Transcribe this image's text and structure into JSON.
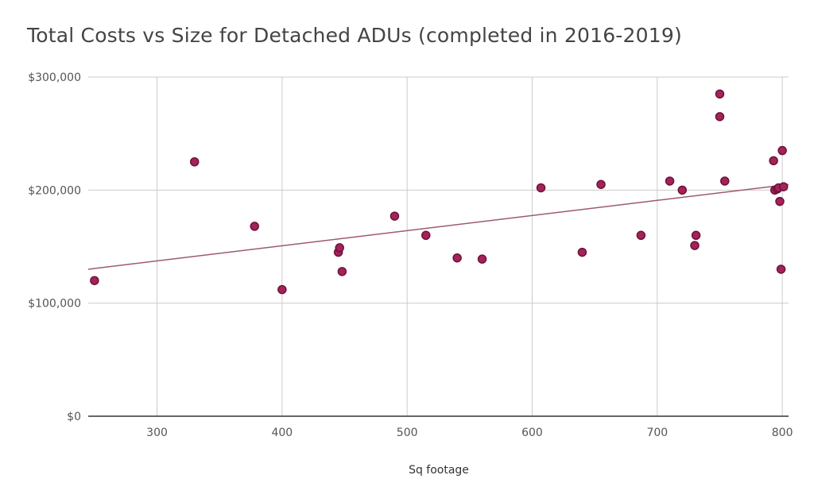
{
  "chart_data": {
    "type": "scatter",
    "title": "Total Costs vs Size for Detached ADUs (completed in 2016-2019)",
    "xlabel": "Sq footage",
    "ylabel": "",
    "xlim": [
      245,
      805
    ],
    "ylim": [
      0,
      300000
    ],
    "x_ticks": [
      {
        "value": 300,
        "label": "300"
      },
      {
        "value": 400,
        "label": "400"
      },
      {
        "value": 500,
        "label": "500"
      },
      {
        "value": 600,
        "label": "600"
      },
      {
        "value": 700,
        "label": "700"
      },
      {
        "value": 800,
        "label": "800"
      }
    ],
    "y_ticks": [
      {
        "value": 0,
        "label": "$0"
      },
      {
        "value": 100000,
        "label": "$100,000"
      },
      {
        "value": 200000,
        "label": "$200,000"
      },
      {
        "value": 300000,
        "label": "$300,000"
      }
    ],
    "grid": true,
    "points": [
      {
        "x": 250,
        "y": 120000
      },
      {
        "x": 330,
        "y": 225000
      },
      {
        "x": 378,
        "y": 168000
      },
      {
        "x": 400,
        "y": 112000
      },
      {
        "x": 445,
        "y": 145000
      },
      {
        "x": 446,
        "y": 149000
      },
      {
        "x": 448,
        "y": 128000
      },
      {
        "x": 490,
        "y": 177000
      },
      {
        "x": 515,
        "y": 160000
      },
      {
        "x": 540,
        "y": 140000
      },
      {
        "x": 560,
        "y": 139000
      },
      {
        "x": 607,
        "y": 202000
      },
      {
        "x": 640,
        "y": 145000
      },
      {
        "x": 655,
        "y": 205000
      },
      {
        "x": 687,
        "y": 160000
      },
      {
        "x": 710,
        "y": 208000
      },
      {
        "x": 720,
        "y": 200000
      },
      {
        "x": 730,
        "y": 151000
      },
      {
        "x": 731,
        "y": 160000
      },
      {
        "x": 750,
        "y": 285000
      },
      {
        "x": 750,
        "y": 265000
      },
      {
        "x": 754,
        "y": 208000
      },
      {
        "x": 793,
        "y": 226000
      },
      {
        "x": 794,
        "y": 200000
      },
      {
        "x": 796,
        "y": 201000
      },
      {
        "x": 797,
        "y": 202000
      },
      {
        "x": 798,
        "y": 190000
      },
      {
        "x": 799,
        "y": 130000
      },
      {
        "x": 800,
        "y": 235000
      },
      {
        "x": 801,
        "y": 203000
      }
    ],
    "trendline": {
      "x": [
        245,
        805
      ],
      "y": [
        130000,
        205000
      ]
    },
    "colors": {
      "point_fill": "#a3235a",
      "point_stroke": "#6e1238",
      "trendline": "#9e5a6e",
      "gridline": "#cccccc",
      "axis": "#333333"
    }
  }
}
